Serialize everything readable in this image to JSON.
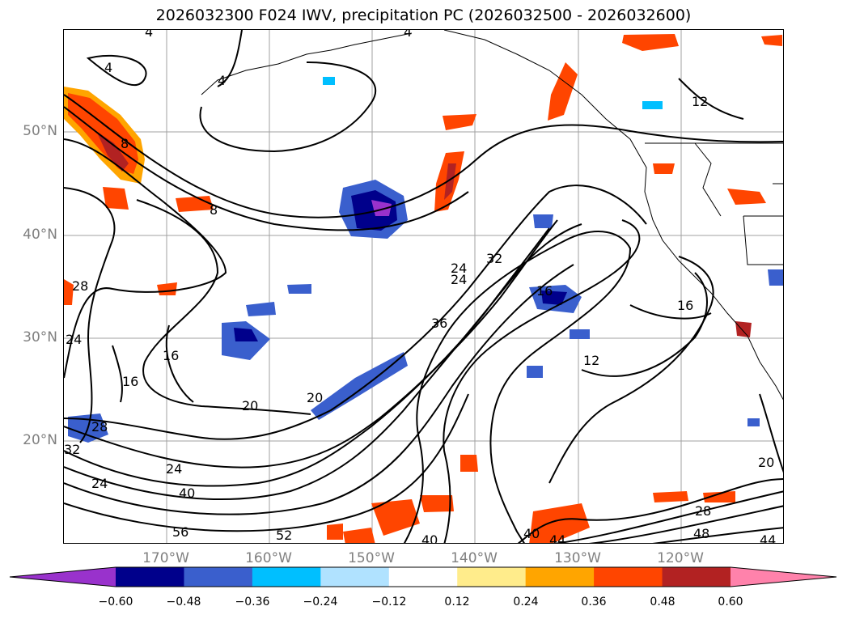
{
  "title": "2026032300 F024 IWV, precipitation PC (2026032500 - 2026032600)",
  "lat_labels": [
    "50°N",
    "40°N",
    "30°N",
    "20°N"
  ],
  "lon_labels": [
    "170°W",
    "160°W",
    "150°W",
    "140°W",
    "130°W",
    "120°W"
  ],
  "colorbar": {
    "ticks": [
      "−0.60",
      "−0.48",
      "−0.36",
      "−0.24",
      "−0.12",
      "0.12",
      "0.24",
      "0.36",
      "0.48",
      "0.60"
    ],
    "colors": [
      "#9932cc",
      "#00008b",
      "#3a5fcd",
      "#00bfff",
      "#b0e2ff",
      "#ffffff",
      "#ffec8b",
      "#ffa500",
      "#ff4500",
      "#b22222",
      "#ff82ab"
    ],
    "extend": "both"
  },
  "contour_labels": [
    "4",
    "4",
    "8",
    "4",
    "4",
    "8",
    "28",
    "24",
    "16",
    "16",
    "20",
    "20",
    "24",
    "28",
    "32",
    "24",
    "24",
    "40",
    "56",
    "52",
    "40",
    "40",
    "44",
    "48",
    "28",
    "44",
    "20",
    "36",
    "32",
    "24",
    "12",
    "16",
    "16",
    "12"
  ],
  "colors": {
    "frame": "#000000",
    "grid": "#a0a0a0",
    "axis_text": "#808080"
  }
}
